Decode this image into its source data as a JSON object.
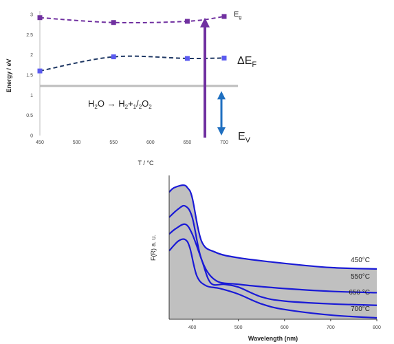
{
  "chart_data": [
    {
      "type": "line",
      "ylabel": "Energy / eV",
      "xlabel": "T / °C",
      "x": [
        450,
        550,
        650,
        700
      ],
      "xlim": [
        450,
        700
      ],
      "ylim": [
        0,
        3
      ],
      "xticks": [
        "450",
        "500",
        "550",
        "600",
        "650",
        "700"
      ],
      "yticks": [
        "0",
        "0.5",
        "1",
        "1.5",
        "2",
        "2.5",
        "3"
      ],
      "series": [
        {
          "name": "E",
          "sub": "g",
          "values": [
            2.92,
            2.8,
            2.83,
            2.95
          ],
          "color": "#7030a0",
          "label_color": "#e0202a"
        },
        {
          "name": "ΔE",
          "sub": "F",
          "values": [
            1.6,
            1.95,
            1.91,
            1.92
          ],
          "color": "#5b5bf0",
          "line_color": "#1f3864"
        }
      ],
      "reference_line": {
        "y": 1.23,
        "color": "#bdbdbd"
      },
      "reaction": {
        "lhs": "H2O",
        "rhs": "H2+1/2O2"
      },
      "ev_label": {
        "name": "E",
        "sub": "V"
      },
      "colors": {
        "eg_arrow": "#7030a0",
        "ev_arrow": "#1f6fc0"
      },
      "eg_arrow_y": [
        0,
        2.85
      ],
      "ev_arrow_y": [
        0,
        1.17
      ],
      "arrow_x": 675
    },
    {
      "type": "line",
      "xlabel": "Wavelength (nm)",
      "ylabel": "F(R) a. u.",
      "xlim": [
        350,
        800
      ],
      "xticks": [
        "400",
        "500",
        "600",
        "700",
        "800"
      ],
      "fill_color": "#c0c0c0",
      "line_color": "#1a1ad6",
      "series": [
        {
          "name": "450°C",
          "x": [
            350,
            360,
            380,
            390,
            400,
            420,
            450,
            500,
            600,
            700,
            800
          ],
          "values": [
            0.9,
            0.93,
            0.95,
            0.93,
            0.86,
            0.55,
            0.47,
            0.43,
            0.39,
            0.36,
            0.35
          ]
        },
        {
          "name": "550°C",
          "x": [
            350,
            370,
            385,
            400,
            420,
            450,
            500,
            600,
            700,
            800
          ],
          "values": [
            0.72,
            0.78,
            0.8,
            0.72,
            0.42,
            0.27,
            0.24,
            0.21,
            0.19,
            0.18
          ]
        },
        {
          "name": "650 °C",
          "x": [
            350,
            365,
            385,
            400,
            420,
            440,
            470,
            500,
            550,
            600,
            700,
            800
          ],
          "values": [
            0.6,
            0.64,
            0.67,
            0.6,
            0.42,
            0.25,
            0.24,
            0.22,
            0.15,
            0.12,
            0.1,
            0.09
          ]
        },
        {
          "name": "700°C",
          "x": [
            350,
            370,
            385,
            395,
            410,
            430,
            460,
            500,
            550,
            600,
            700,
            800
          ],
          "values": [
            0.48,
            0.55,
            0.56,
            0.5,
            0.3,
            0.23,
            0.21,
            0.17,
            0.1,
            0.06,
            0.02,
            0.0
          ]
        }
      ]
    }
  ]
}
